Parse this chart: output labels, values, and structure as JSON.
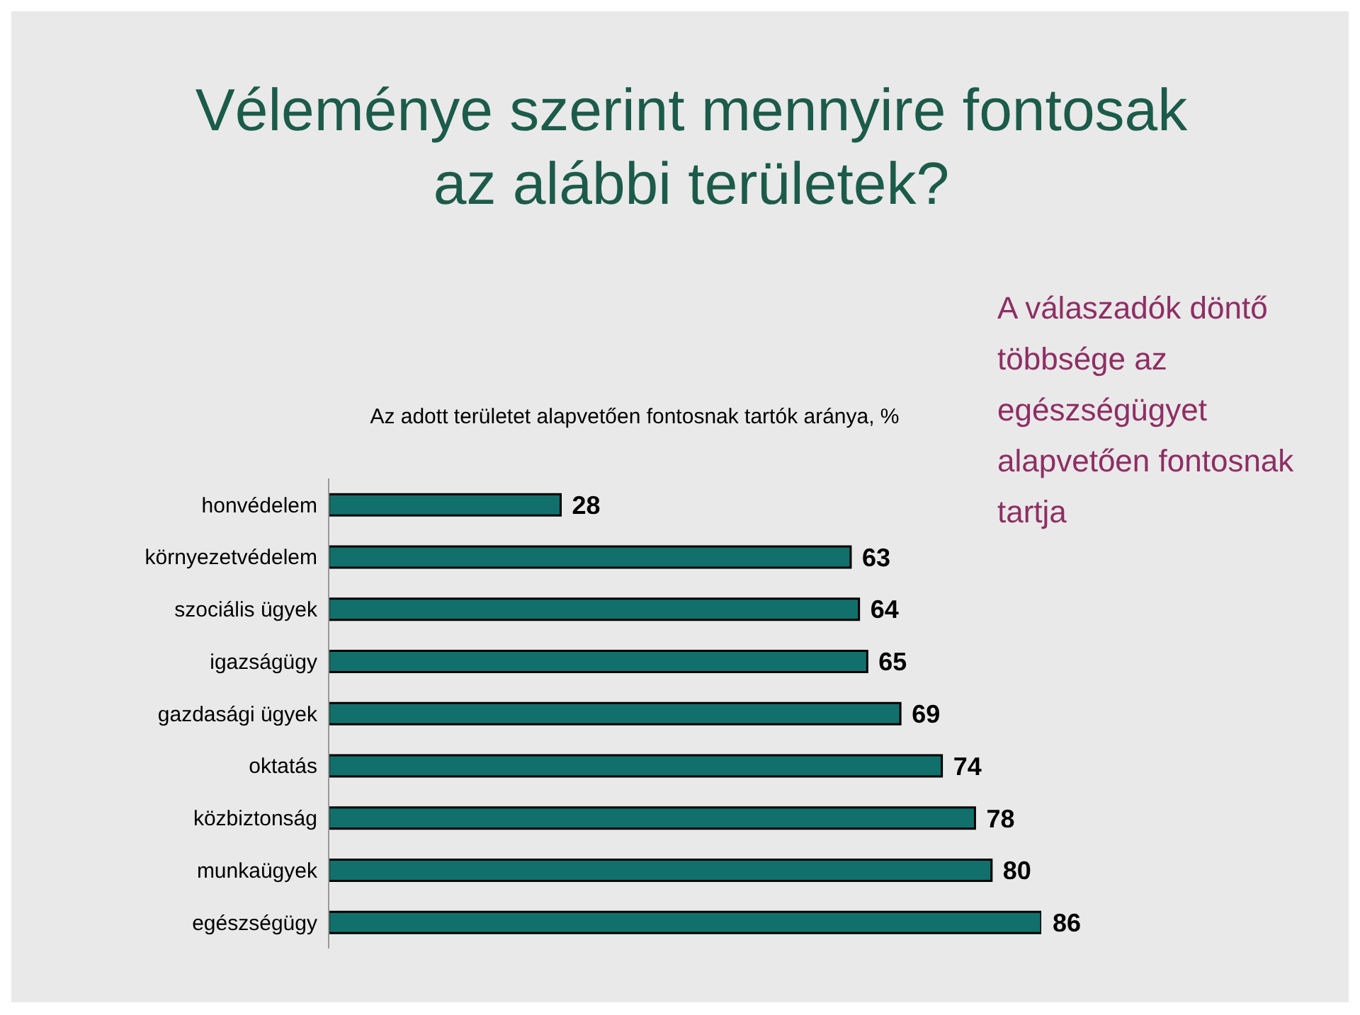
{
  "chart_data": {
    "type": "bar",
    "orientation": "horizontal",
    "title": "Véleménye szerint mennyire fontosak az alábbi területek?",
    "subtitle": "Az adott területet alapvetően fontosnak tartók aránya, %",
    "categories": [
      "honvédelem",
      "környezetvédelem",
      "szociális ügyek",
      "igazságügy",
      "gazdasági ügyek",
      "oktatás",
      "közbiztonság",
      "munkaügyek",
      "egészségügy"
    ],
    "values": [
      28,
      63,
      64,
      65,
      69,
      74,
      78,
      80,
      86
    ],
    "color": "#12706c",
    "data_labels": true,
    "tick_labels": "y",
    "grid": false,
    "legend": false,
    "annotations": [
      "A válaszadók döntő többsége az egészségügyet alapvetően fontosnak tartja"
    ]
  }
}
